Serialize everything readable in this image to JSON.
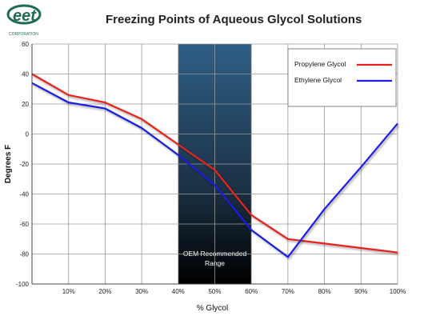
{
  "logo": {
    "text": "eet",
    "subtext": "CORPORATION",
    "color": "#1f6b55"
  },
  "chart_data": {
    "type": "line",
    "title": "Freezing Points of Aqueous Glycol Solutions",
    "xlabel": "% Glycol",
    "ylabel": "Degrees F",
    "xlim": [
      0,
      100
    ],
    "ylim": [
      -100,
      60
    ],
    "x_ticks": [
      "10%",
      "20%",
      "30%",
      "40%",
      "50%",
      "60%",
      "70%",
      "80%",
      "90%",
      "100%"
    ],
    "x_tick_values": [
      10,
      20,
      30,
      40,
      50,
      60,
      70,
      80,
      90,
      100
    ],
    "y_ticks": [
      "60",
      "40",
      "20",
      "0",
      "-20",
      "-40",
      "-60",
      "-80",
      "-100"
    ],
    "y_tick_values": [
      60,
      40,
      20,
      0,
      -20,
      -40,
      -60,
      -80,
      -100
    ],
    "grid": true,
    "legend_position": "top-right",
    "series": [
      {
        "name": "Propylene Glycol",
        "color": "#e8231f",
        "x": [
          0,
          10,
          20,
          30,
          40,
          50,
          60,
          70,
          80,
          90,
          100
        ],
        "y": [
          40,
          26,
          21,
          10,
          -7,
          -24,
          -54,
          -70,
          -73,
          -76,
          -79
        ]
      },
      {
        "name": "Ethylene Glycol",
        "color": "#1a1ee0",
        "x": [
          0,
          10,
          20,
          30,
          40,
          50,
          60,
          70,
          80,
          90,
          100
        ],
        "y": [
          34,
          21,
          17,
          4,
          -14,
          -34,
          -64,
          -82,
          -50,
          -22,
          7
        ]
      }
    ],
    "annotations": [
      {
        "label_lines": [
          "OEM Recommended",
          "Range"
        ],
        "x_start": 40,
        "x_end": 60
      }
    ]
  }
}
